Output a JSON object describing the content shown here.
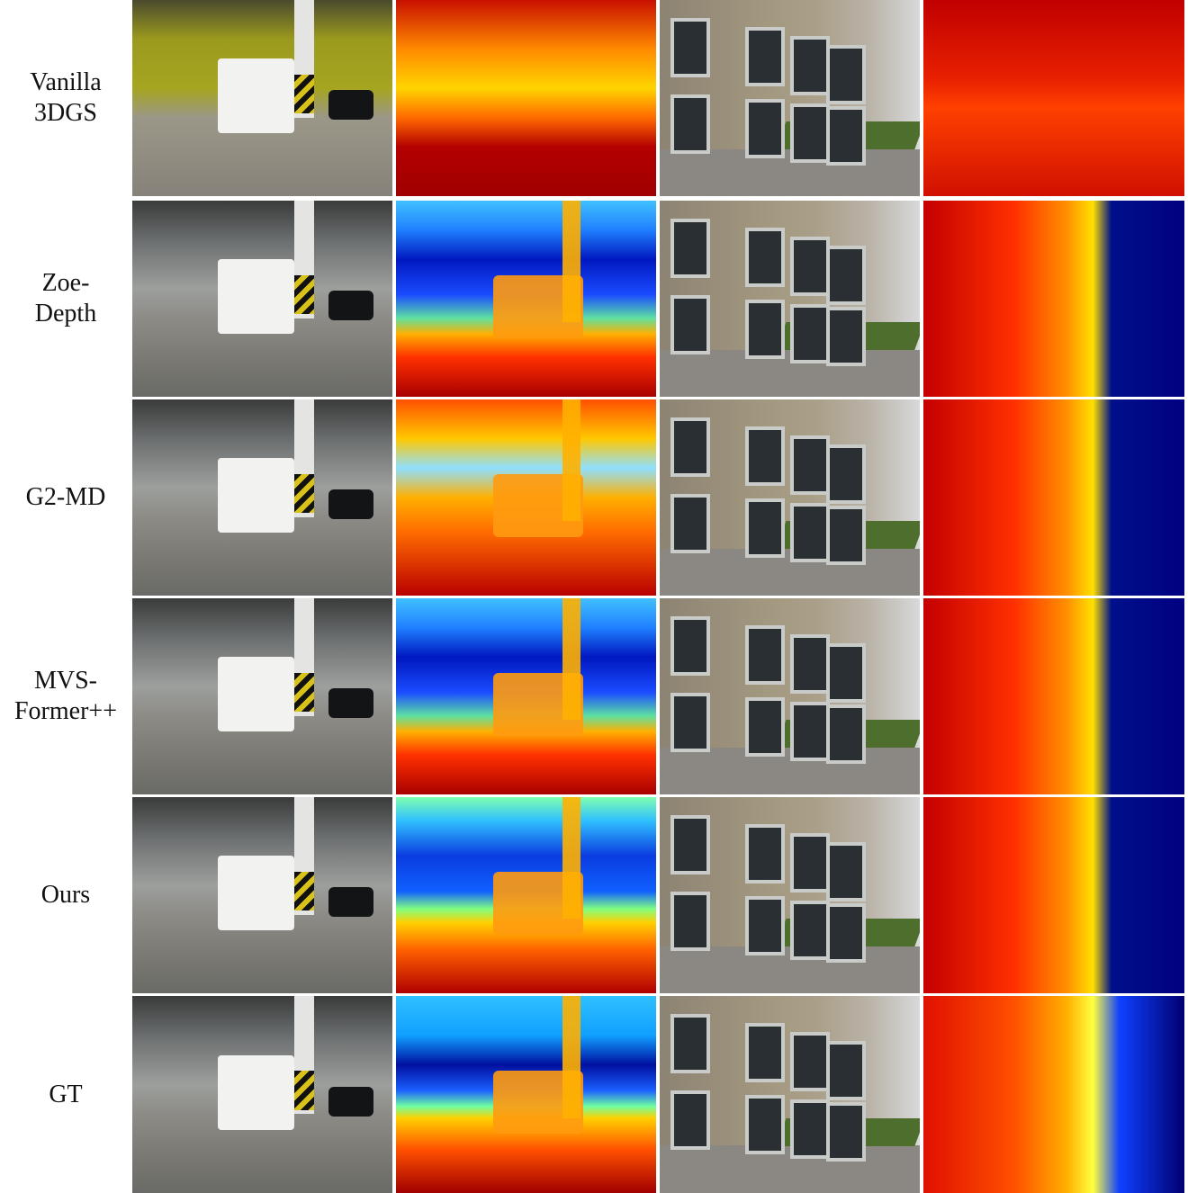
{
  "rows": [
    {
      "label_lines": [
        "Vanilla",
        "3DGS"
      ]
    },
    {
      "label_lines": [
        "Zoe-",
        "Depth"
      ]
    },
    {
      "label_lines": [
        "G2-MD"
      ]
    },
    {
      "label_lines": [
        "MVS-",
        "Former++"
      ]
    },
    {
      "label_lines": [
        "Ours"
      ]
    },
    {
      "label_lines": [
        "GT"
      ]
    }
  ]
}
